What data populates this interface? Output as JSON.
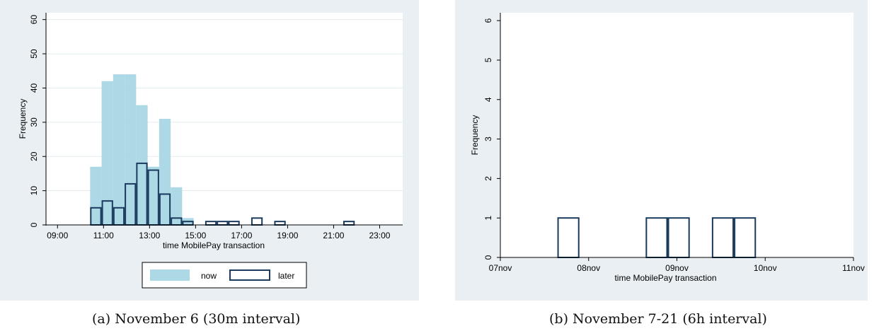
{
  "colors": {
    "panel_bg": "#e9eff3",
    "plot_bg": "#ffffff",
    "now_fill": "#add8e6",
    "later_stroke": "#1a3b5d",
    "axis": "#000000",
    "grid": "#e2ebef"
  },
  "chart_data": [
    {
      "type": "bar",
      "caption": "(a) November 6 (30m interval)",
      "xlabel": "time MobilePay transaction",
      "ylabel": "Frequency",
      "xlim": [
        "08:30",
        "24:00"
      ],
      "ylim": [
        0,
        62
      ],
      "x_tick_labels": [
        "09:00",
        "11:00",
        "13:00",
        "15:00",
        "17:00",
        "19:00",
        "21:00",
        "23:00"
      ],
      "y_tick_labels": [
        "0",
        "10",
        "20",
        "30",
        "40",
        "50",
        "60"
      ],
      "grid": true,
      "legend_position": "bottom",
      "series": [
        {
          "name": "now",
          "style": "filled",
          "bins": [
            {
              "start": "10:25",
              "end": "10:55",
              "value": 17
            },
            {
              "start": "10:55",
              "end": "11:25",
              "value": 42
            },
            {
              "start": "11:25",
              "end": "11:55",
              "value": 44
            },
            {
              "start": "11:55",
              "end": "12:25",
              "value": 44
            },
            {
              "start": "12:25",
              "end": "12:55",
              "value": 35
            },
            {
              "start": "12:55",
              "end": "13:25",
              "value": 17
            },
            {
              "start": "13:25",
              "end": "13:55",
              "value": 31
            },
            {
              "start": "13:55",
              "end": "14:25",
              "value": 11
            },
            {
              "start": "14:25",
              "end": "14:55",
              "value": 2
            }
          ]
        },
        {
          "name": "later",
          "style": "outline",
          "bins": [
            {
              "start": "10:25",
              "end": "10:55",
              "value": 5
            },
            {
              "start": "10:55",
              "end": "11:25",
              "value": 7
            },
            {
              "start": "11:25",
              "end": "11:55",
              "value": 5
            },
            {
              "start": "11:55",
              "end": "12:25",
              "value": 12
            },
            {
              "start": "12:25",
              "end": "12:55",
              "value": 18
            },
            {
              "start": "12:55",
              "end": "13:25",
              "value": 16
            },
            {
              "start": "13:25",
              "end": "13:55",
              "value": 9
            },
            {
              "start": "13:55",
              "end": "14:25",
              "value": 2
            },
            {
              "start": "14:25",
              "end": "14:55",
              "value": 1
            },
            {
              "start": "15:25",
              "end": "15:55",
              "value": 1
            },
            {
              "start": "15:55",
              "end": "16:25",
              "value": 1
            },
            {
              "start": "16:25",
              "end": "16:55",
              "value": 1
            },
            {
              "start": "17:25",
              "end": "17:55",
              "value": 2
            },
            {
              "start": "18:25",
              "end": "18:55",
              "value": 1
            },
            {
              "start": "21:25",
              "end": "21:55",
              "value": 1
            }
          ]
        }
      ]
    },
    {
      "type": "bar",
      "caption": "(b) November 7-21 (6h interval)",
      "xlabel": "time MobilePay transaction",
      "ylabel": "Frequency",
      "xlim": [
        "07nov 00:00",
        "11nov 00:00"
      ],
      "ylim": [
        0,
        6.2
      ],
      "x_tick_labels": [
        "07nov",
        "08nov",
        "09nov",
        "10nov",
        "11nov"
      ],
      "y_tick_labels": [
        "0",
        "1",
        "2",
        "3",
        "4",
        "5",
        "6"
      ],
      "grid": false,
      "series": [
        {
          "style": "outline",
          "bins": [
            {
              "start": "07nov 15:30",
              "end": "07nov 21:30",
              "value": 1
            },
            {
              "start": "08nov 15:30",
              "end": "08nov 21:30",
              "value": 1
            },
            {
              "start": "08nov 21:30",
              "end": "09nov 03:30",
              "value": 1
            },
            {
              "start": "09nov 09:30",
              "end": "09nov 15:30",
              "value": 1
            },
            {
              "start": "09nov 15:30",
              "end": "09nov 21:30",
              "value": 1
            }
          ]
        }
      ]
    }
  ]
}
